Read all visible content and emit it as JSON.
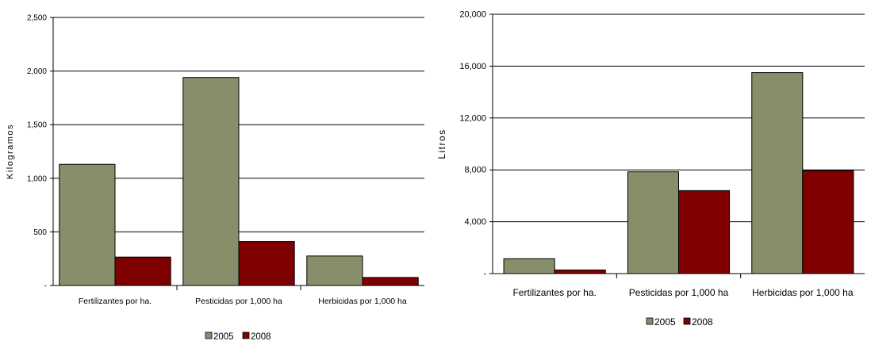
{
  "chart_data": [
    {
      "type": "bar",
      "title": "",
      "xlabel": "",
      "ylabel": "Kilogramos",
      "ylim": [
        0,
        2500
      ],
      "yticks": [
        0,
        500,
        1000,
        1500,
        2000,
        2500
      ],
      "ytick_labels": [
        "-",
        "500",
        "1,000",
        "1,500",
        "2,000",
        "2,500"
      ],
      "grid": true,
      "legend_position": "bottom",
      "categories": [
        "Fertilizantes por ha.",
        "Pesticidas por 1,000 ha",
        "Herbicidas por 1,000 ha"
      ],
      "series": [
        {
          "name": "2005",
          "color": "#868f6a",
          "values": [
            1130,
            1940,
            275
          ]
        },
        {
          "name": "2008",
          "color": "#7f0000",
          "values": [
            265,
            410,
            75
          ]
        }
      ]
    },
    {
      "type": "bar",
      "title": "",
      "xlabel": "",
      "ylabel": "Litros",
      "ylim": [
        0,
        20000
      ],
      "yticks": [
        0,
        4000,
        8000,
        12000,
        16000,
        20000
      ],
      "ytick_labels": [
        "-",
        "4,000",
        "8,000",
        "12,000",
        "16,000",
        "20,000"
      ],
      "grid": true,
      "legend_position": "bottom",
      "categories": [
        "Fertilizantes por ha.",
        "Pesticidas por 1,000 ha",
        "Herbicidas por 1,000 ha"
      ],
      "series": [
        {
          "name": "2005",
          "color": "#868f6a",
          "values": [
            1150,
            7850,
            15500
          ]
        },
        {
          "name": "2008",
          "color": "#7f0000",
          "values": [
            280,
            6400,
            7950
          ]
        }
      ]
    }
  ]
}
